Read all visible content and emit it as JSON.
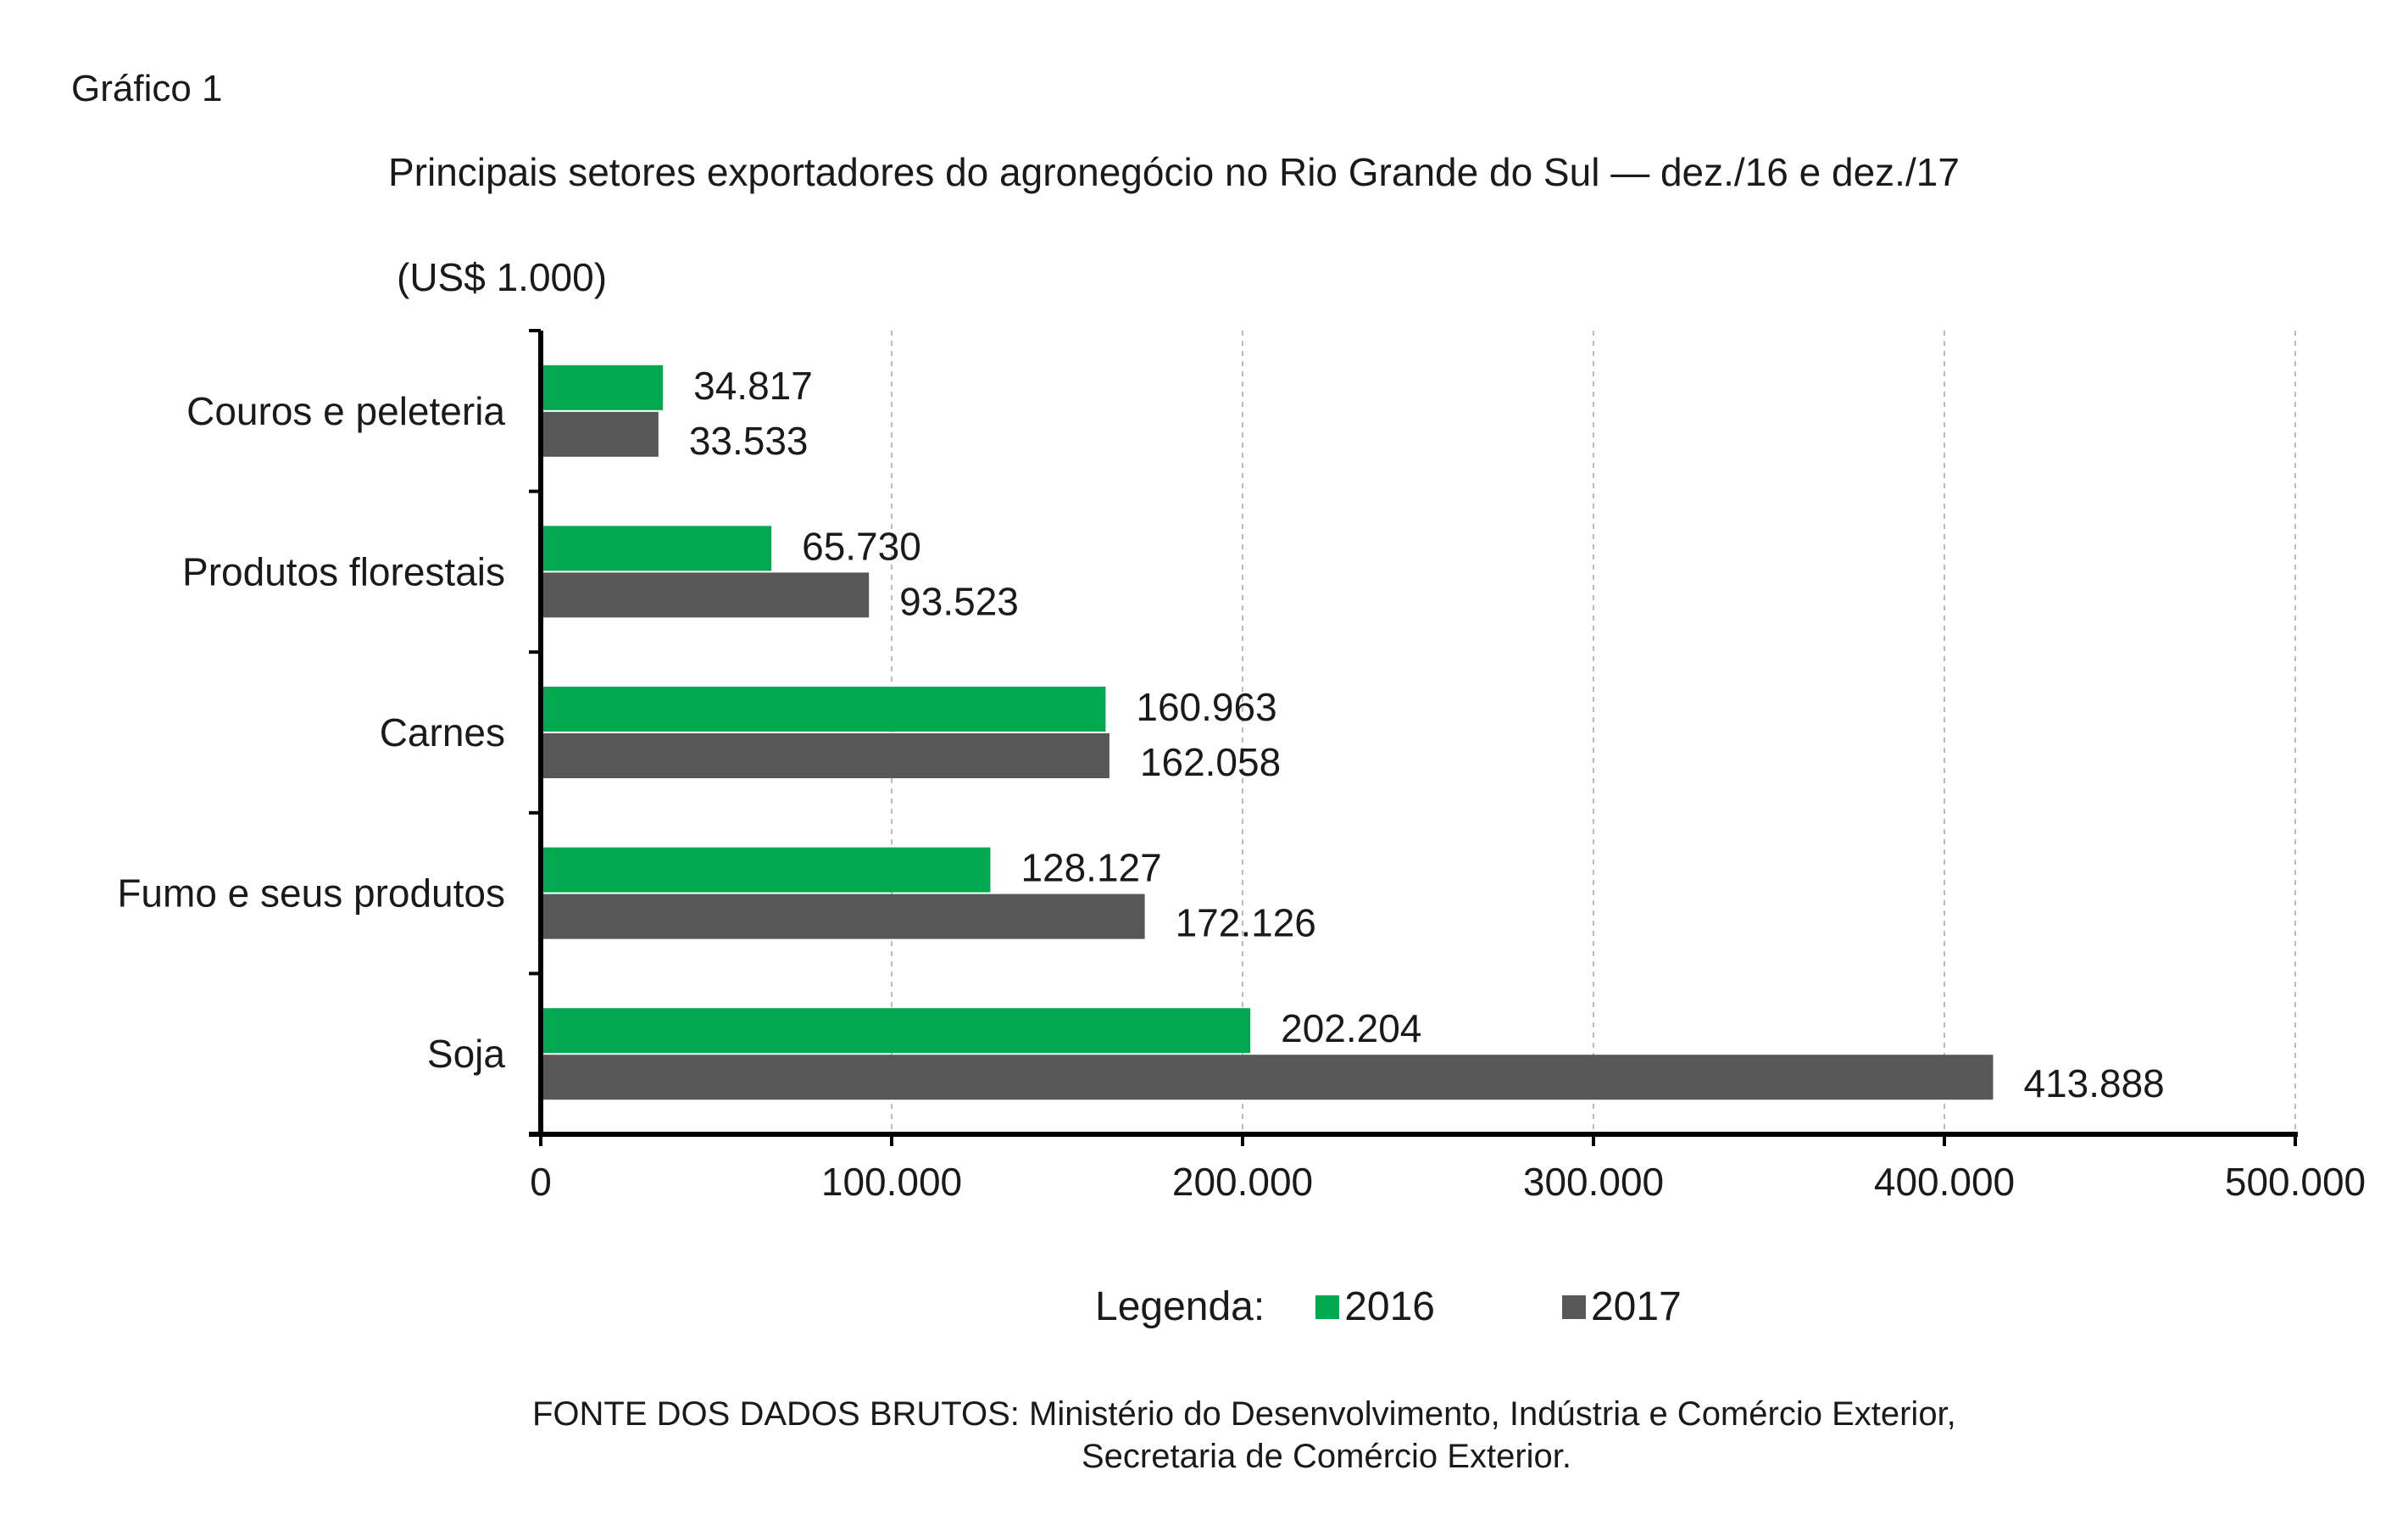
{
  "figure_label": "Gráfico 1",
  "title": "Principais setores exportadores do agronegócio no Rio Grande do Sul — dez./16 e dez./17",
  "unit": "(US$ 1.000)",
  "legend": {
    "title": "Legenda:",
    "items": [
      "2016",
      "2017"
    ]
  },
  "source": {
    "line1": "FONTE DOS DADOS BRUTOS: Ministério do Desenvolvimento, Indústria e Comércio Exterior,",
    "line2": "Secretaria de Comércio Exterior."
  },
  "colors": {
    "2016": "#00a84f",
    "2017": "#575757"
  },
  "chart_data": {
    "type": "bar",
    "orientation": "horizontal",
    "title": "Principais setores exportadores do agronegócio no Rio Grande do Sul — dez./16 e dez./17",
    "xlabel": "",
    "ylabel": "(US$ 1.000)",
    "xlim": [
      0,
      500000
    ],
    "xticks": [
      0,
      100000,
      200000,
      300000,
      400000,
      500000
    ],
    "xtick_labels": [
      "0",
      "100.000",
      "200.000",
      "300.000",
      "400.000",
      "500.000"
    ],
    "grid": "vertical dashed",
    "legend_position": "bottom",
    "categories": [
      "Couros e peleteria",
      "Produtos florestais",
      "Carnes",
      "Fumo e seus produtos",
      "Soja"
    ],
    "series": [
      {
        "name": "2016",
        "values": [
          34817,
          65730,
          160963,
          128127,
          202204
        ],
        "labels": [
          "34.817",
          "65.730",
          "160.963",
          "128.127",
          "202.204"
        ]
      },
      {
        "name": "2017",
        "values": [
          33533,
          93523,
          162058,
          172126,
          413888
        ],
        "labels": [
          "33.533",
          "93.523",
          "162.058",
          "172.126",
          "413.888"
        ]
      }
    ]
  }
}
